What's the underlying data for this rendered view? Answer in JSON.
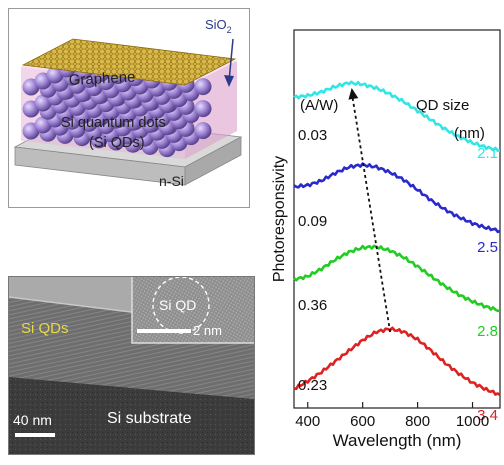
{
  "schematic": {
    "label_sio2": "SiO",
    "label_sio2_sub": "2",
    "label_graphene": "Graphene",
    "label_qd_line1": "Si quantum dots",
    "label_qd_line2": "(Si QDs)",
    "label_nsi": "n-Si",
    "color_graphene": "#c9a83a",
    "color_qd": "#9a7fd0",
    "color_sio2": "#e8b4d8",
    "color_base": "#d9d9d9"
  },
  "tem": {
    "label_si_qds": "Si QDs",
    "label_substrate": "Si substrate",
    "scale_main": "40 nm",
    "inset_label": "Si QD",
    "scale_inset": "2 nm",
    "color_si_qds_label": "#e6d84a"
  },
  "chart_data": {
    "type": "line",
    "xlabel": "Wavelength (nm)",
    "ylabel": "Photoresponsivity",
    "xlim": [
      350,
      1100
    ],
    "xticks": [
      400,
      600,
      800,
      1000
    ],
    "y_unit_label": "(A/W)",
    "size_header_line1": "QD size",
    "size_header_line2": "(nm)",
    "peak_arrow": true,
    "series": [
      {
        "qd_size": "2.1",
        "responsivity": "",
        "color": "#33e6e6",
        "offset": 3.0,
        "peak_x": 560,
        "x": [
          350,
          400,
          450,
          500,
          550,
          600,
          650,
          700,
          750,
          800,
          850,
          900,
          950,
          1000,
          1050,
          1100
        ],
        "values": [
          0.8,
          0.82,
          0.87,
          0.94,
          0.99,
          0.97,
          0.92,
          0.84,
          0.74,
          0.62,
          0.5,
          0.38,
          0.28,
          0.2,
          0.14,
          0.1
        ]
      },
      {
        "qd_size": "2.5",
        "responsivity": "0.03",
        "color": "#2a2acc",
        "offset": 2.0,
        "peak_x": 600,
        "x": [
          350,
          400,
          450,
          500,
          550,
          600,
          650,
          700,
          750,
          800,
          850,
          900,
          950,
          1000,
          1050,
          1100
        ],
        "values": [
          0.7,
          0.72,
          0.78,
          0.88,
          0.96,
          0.99,
          0.96,
          0.89,
          0.79,
          0.66,
          0.52,
          0.4,
          0.3,
          0.22,
          0.16,
          0.12
        ]
      },
      {
        "qd_size": "2.8",
        "responsivity": "0.09",
        "color": "#22cc22",
        "offset": 1.0,
        "peak_x": 640,
        "x": [
          350,
          400,
          450,
          500,
          550,
          600,
          650,
          700,
          750,
          800,
          850,
          900,
          950,
          1000,
          1050,
          1100
        ],
        "values": [
          0.56,
          0.6,
          0.7,
          0.82,
          0.92,
          0.98,
          0.99,
          0.94,
          0.85,
          0.73,
          0.6,
          0.47,
          0.36,
          0.27,
          0.2,
          0.15
        ]
      },
      {
        "qd_size": "3.4",
        "responsivity": "0.36",
        "color": "#dd2222",
        "offset": 0.0,
        "peak_x": 700,
        "x": [
          350,
          400,
          450,
          500,
          550,
          600,
          650,
          700,
          750,
          800,
          850,
          900,
          950,
          1000,
          1050,
          1100
        ],
        "values": [
          0.2,
          0.3,
          0.42,
          0.56,
          0.7,
          0.84,
          0.95,
          0.99,
          0.95,
          0.85,
          0.7,
          0.54,
          0.4,
          0.28,
          0.19,
          0.12
        ]
      },
      {
        "qd_size": "",
        "responsivity": "0.23",
        "color": "#000000",
        "offset": 0.0,
        "peak_x": null,
        "x": [],
        "values": []
      }
    ]
  }
}
